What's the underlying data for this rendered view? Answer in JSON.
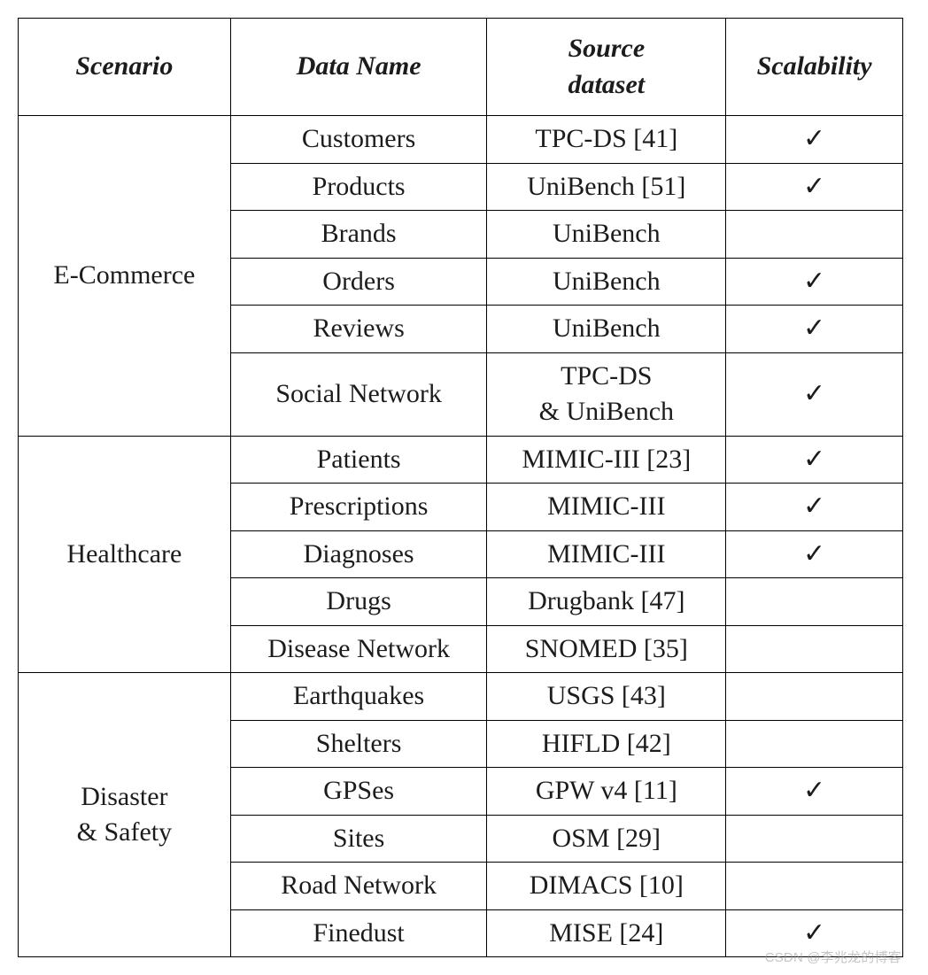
{
  "watermark": "CSDN @李兆龙的博客",
  "table": {
    "columns": [
      "Scenario",
      "Data Name",
      "Source\ndataset",
      "Scalability"
    ],
    "col_classes": [
      "col-scenario",
      "col-dataname",
      "col-source",
      "col-scal"
    ],
    "check_glyph": "✓",
    "groups": [
      {
        "scenario": "E-Commerce",
        "scenario_multiline": false,
        "rows": [
          {
            "data_name": "Customers",
            "source": "TPC-DS [41]",
            "scalable": true
          },
          {
            "data_name": "Products",
            "source": "UniBench [51]",
            "scalable": true
          },
          {
            "data_name": "Brands",
            "source": "UniBench",
            "scalable": false
          },
          {
            "data_name": "Orders",
            "source": "UniBench",
            "scalable": true
          },
          {
            "data_name": "Reviews",
            "source": "UniBench",
            "scalable": true
          },
          {
            "data_name": "Social Network",
            "source": "TPC-DS\n& UniBench",
            "scalable": true
          }
        ]
      },
      {
        "scenario": "Healthcare",
        "scenario_multiline": false,
        "rows": [
          {
            "data_name": "Patients",
            "source": "MIMIC-III [23]",
            "scalable": true
          },
          {
            "data_name": "Prescriptions",
            "source": "MIMIC-III",
            "scalable": true
          },
          {
            "data_name": "Diagnoses",
            "source": "MIMIC-III",
            "scalable": true
          },
          {
            "data_name": "Drugs",
            "source": "Drugbank [47]",
            "scalable": false
          },
          {
            "data_name": "Disease Network",
            "source": "SNOMED [35]",
            "scalable": false
          }
        ]
      },
      {
        "scenario": "Disaster\n& Safety",
        "scenario_multiline": true,
        "rows": [
          {
            "data_name": "Earthquakes",
            "source": "USGS [43]",
            "scalable": false
          },
          {
            "data_name": "Shelters",
            "source": "HIFLD [42]",
            "scalable": false
          },
          {
            "data_name": "GPSes",
            "source": "GPW v4 [11]",
            "scalable": true
          },
          {
            "data_name": "Sites",
            "source": "OSM [29]",
            "scalable": false
          },
          {
            "data_name": "Road Network",
            "source": "DIMACS [10]",
            "scalable": false
          },
          {
            "data_name": "Finedust",
            "source": "MISE [24]",
            "scalable": true
          }
        ]
      }
    ]
  }
}
